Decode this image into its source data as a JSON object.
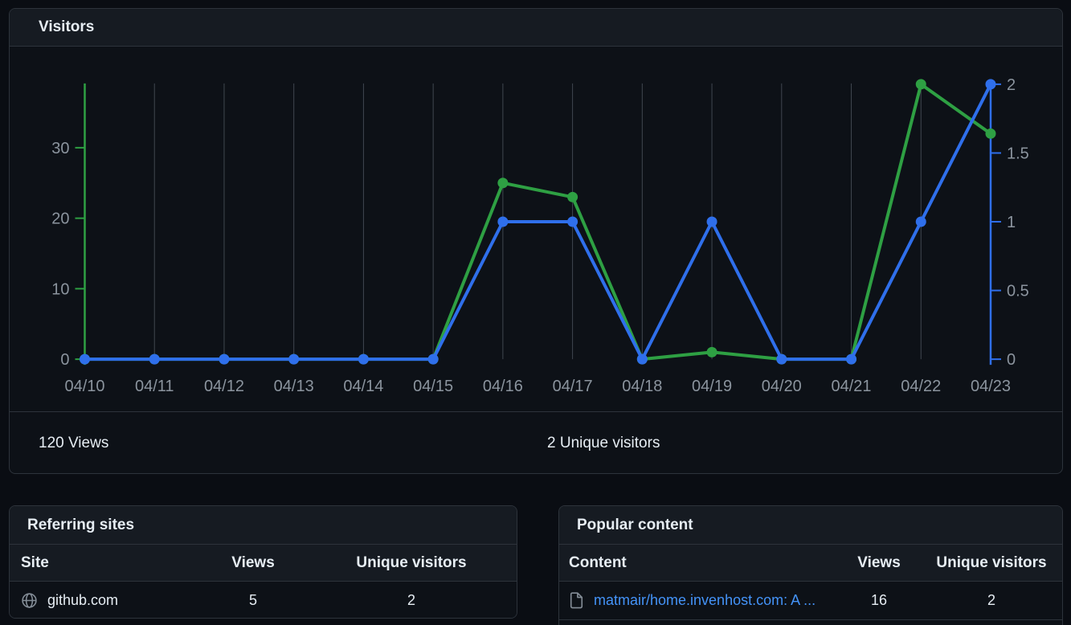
{
  "colors": {
    "page_bg": "#0a0d13",
    "panel_bg": "#0d1117",
    "header_bg": "#161b22",
    "border": "#2d333b",
    "text_primary": "#e6edf3",
    "text_muted": "#8b949e",
    "gridline": "#404750",
    "views_green": "#2ea043",
    "unique_blue": "#2f6feb",
    "link_blue": "#4493f8",
    "icon_gray": "#848d97"
  },
  "visitors_panel": {
    "title": "Visitors",
    "views_total": "120 Views",
    "unique_total": "2 Unique visitors"
  },
  "chart_data": {
    "type": "line",
    "title": "Visitors",
    "categories": [
      "04/10",
      "04/11",
      "04/12",
      "04/13",
      "04/14",
      "04/15",
      "04/16",
      "04/17",
      "04/18",
      "04/19",
      "04/20",
      "04/21",
      "04/22",
      "04/23"
    ],
    "series": [
      {
        "name": "Views",
        "axis": "left",
        "color": "#2ea043",
        "values": [
          0,
          0,
          0,
          0,
          0,
          0,
          25,
          23,
          0,
          1,
          0,
          0,
          39,
          32
        ]
      },
      {
        "name": "Unique visitors",
        "axis": "right",
        "color": "#2f6feb",
        "values": [
          0,
          0,
          0,
          0,
          0,
          0,
          1,
          1,
          0,
          1,
          0,
          0,
          1,
          2
        ]
      }
    ],
    "left_axis": {
      "ticks": [
        0,
        10,
        20,
        30
      ],
      "labels": [
        "0",
        "10",
        "20",
        "30"
      ],
      "max": 39,
      "color": "#2ea043"
    },
    "right_axis": {
      "ticks": [
        0,
        0.5,
        1,
        1.5,
        2
      ],
      "labels": [
        "0",
        "0.5",
        "1",
        "1.5",
        "2"
      ],
      "max": 2,
      "color": "#2f6feb"
    },
    "grid": "vertical-only",
    "legend": "none"
  },
  "referring_sites": {
    "title": "Referring sites",
    "columns": {
      "c1": "Site",
      "c2": "Views",
      "c3": "Unique visitors"
    },
    "rows": [
      {
        "site": "github.com",
        "views": "5",
        "unique": "2",
        "icon": "globe-icon"
      }
    ]
  },
  "popular_content": {
    "title": "Popular content",
    "columns": {
      "c1": "Content",
      "c2": "Views",
      "c3": "Unique visitors"
    },
    "rows": [
      {
        "content": "matmair/home.invenhost.com: A ...",
        "views": "16",
        "unique": "2",
        "icon": "file-icon"
      }
    ]
  }
}
